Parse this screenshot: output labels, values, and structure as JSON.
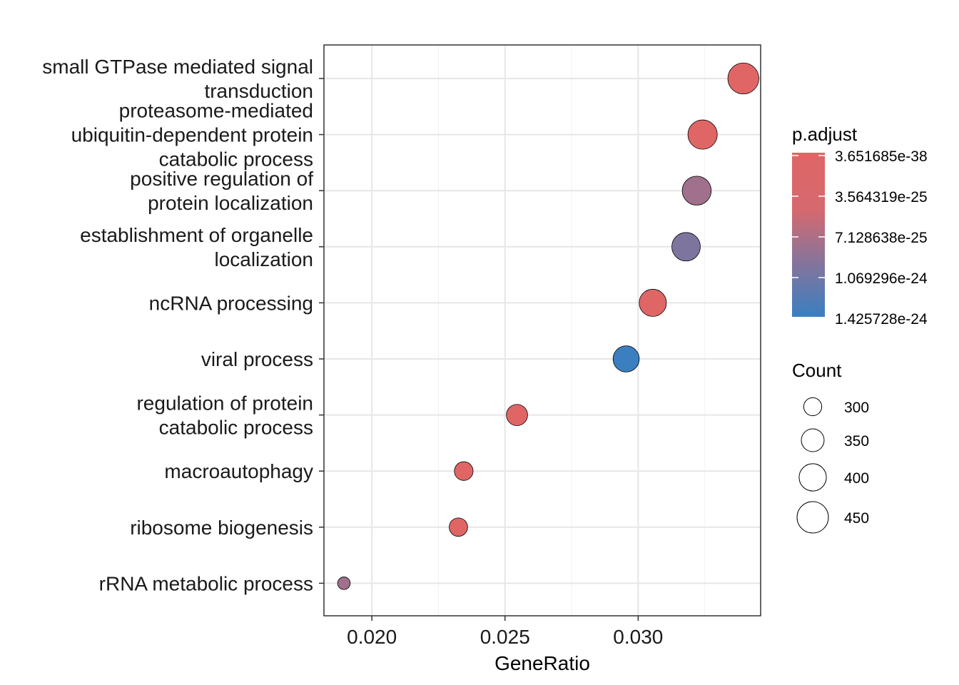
{
  "chart_data": {
    "type": "scatter",
    "xlabel": "GeneRatio",
    "ylabel": "",
    "xlim": [
      0.0182,
      0.0346
    ],
    "xticks": [
      "0.020",
      "0.025",
      "0.030"
    ],
    "xtick_values": [
      0.02,
      0.025,
      0.03
    ],
    "grid": true,
    "legend_position": "right",
    "categories": [
      [
        "small GTPase mediated signal",
        "transduction"
      ],
      [
        "proteasome-mediated",
        "ubiquitin-dependent protein",
        "catabolic process"
      ],
      [
        "positive regulation of",
        "protein localization"
      ],
      [
        "establishment of organelle",
        "localization"
      ],
      [
        "ncRNA processing"
      ],
      [
        "viral process"
      ],
      [
        "regulation of protein",
        "catabolic process"
      ],
      [
        "macroautophagy"
      ],
      [
        "ribosome biogenesis"
      ],
      [
        "rRNA metabolic process"
      ]
    ],
    "points": [
      {
        "category_index": 0,
        "x": 0.03395,
        "count": 445,
        "p_adjust": 3.7e-38
      },
      {
        "category_index": 1,
        "x": 0.03242,
        "count": 425,
        "p_adjust": 5e-30
      },
      {
        "category_index": 2,
        "x": 0.0322,
        "count": 421,
        "p_adjust": 8e-25
      },
      {
        "category_index": 3,
        "x": 0.0318,
        "count": 415,
        "p_adjust": 1e-24
      },
      {
        "category_index": 4,
        "x": 0.03055,
        "count": 400,
        "p_adjust": 1e-30
      },
      {
        "category_index": 5,
        "x": 0.02955,
        "count": 388,
        "p_adjust": 1.42e-24
      },
      {
        "category_index": 6,
        "x": 0.02545,
        "count": 333,
        "p_adjust": 1e-30
      },
      {
        "category_index": 7,
        "x": 0.02345,
        "count": 307,
        "p_adjust": 1e-30
      },
      {
        "category_index": 8,
        "x": 0.02325,
        "count": 304,
        "p_adjust": 1e-30
      },
      {
        "category_index": 9,
        "x": 0.01895,
        "count": 248,
        "p_adjust": 8e-25
      }
    ],
    "color_legend": {
      "title": "p.adjust",
      "labels": [
        "3.651685e-38",
        "3.564319e-25",
        "7.128638e-25",
        "1.069296e-24",
        "1.425728e-24"
      ],
      "low_color": "#E06666",
      "high_color": "#3A7FC1"
    },
    "size_legend": {
      "title": "Count",
      "labels": [
        "300",
        "350",
        "400",
        "450"
      ],
      "values": [
        300,
        350,
        400,
        450
      ]
    }
  }
}
